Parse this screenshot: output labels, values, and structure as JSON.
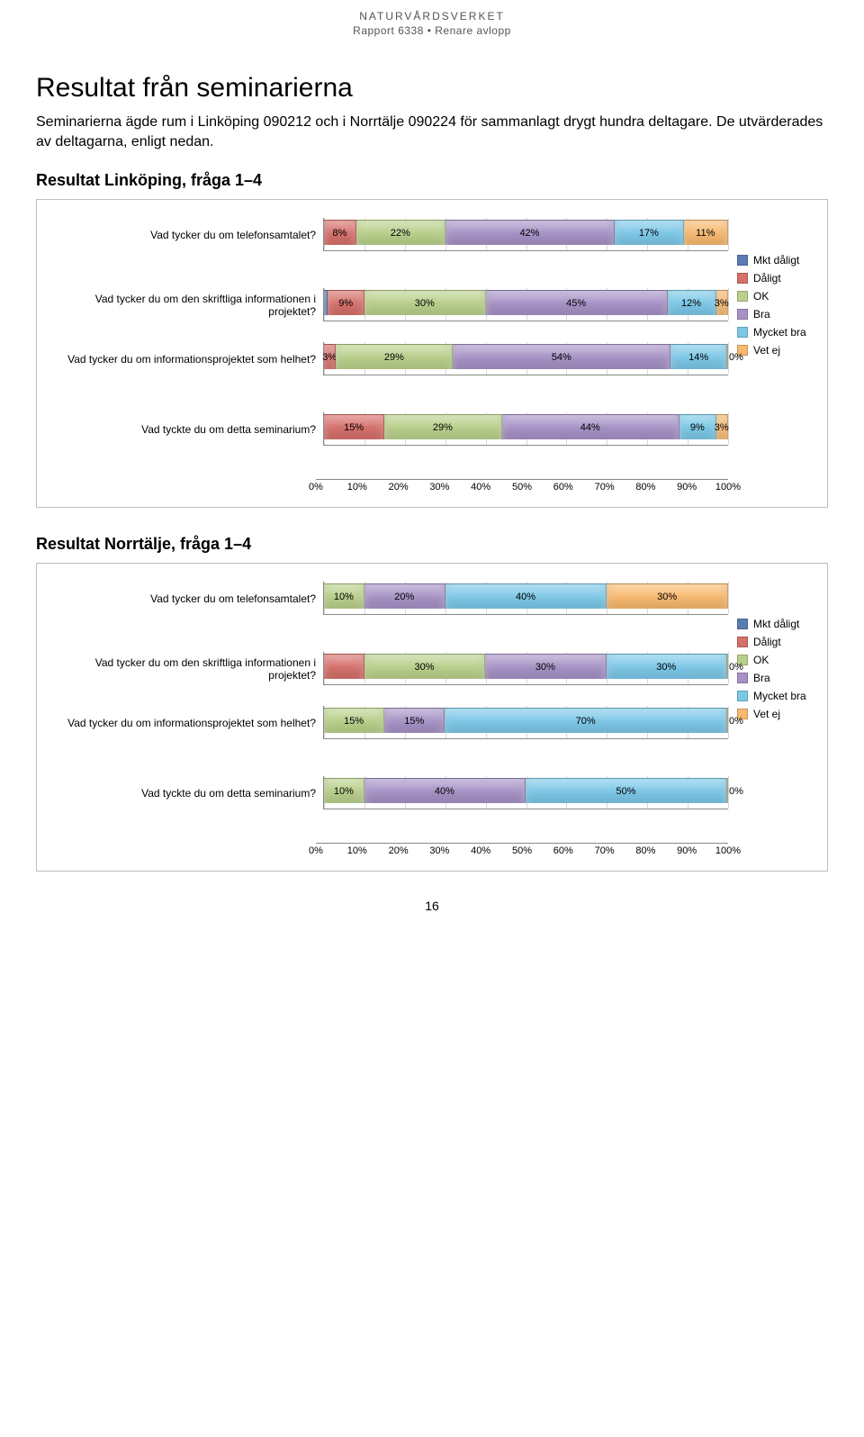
{
  "doc": {
    "header1": "NATURVÅRDSVERKET",
    "header2": "Rapport 6338 • Renare avlopp",
    "page_num": "16",
    "title": "Resultat från seminarierna",
    "intro": "Seminarierna ägde rum i Linköping 090212 och i Norrtälje 090224 för sammanlagt drygt hundra deltagare. De utvärderades av deltagarna, enligt nedan.",
    "subtitle1": "Resultat Linköping, fråga 1–4",
    "subtitle2": "Resultat Norrtälje, fråga 1–4"
  },
  "palette": {
    "mkt_daligt": "#5b7bb4",
    "daligt": "#d6706b",
    "ok": "#b9d08b",
    "bra": "#a692c6",
    "mycket_bra": "#7cc8e8",
    "vet_ej": "#f7b96f",
    "grid": "#d9d9d9"
  },
  "legend": {
    "items": [
      {
        "label": "Mkt dåligt",
        "colorKey": "mkt_daligt"
      },
      {
        "label": "Dåligt",
        "colorKey": "daligt"
      },
      {
        "label": "OK",
        "colorKey": "ok"
      },
      {
        "label": "Bra",
        "colorKey": "bra"
      },
      {
        "label": "Mycket bra",
        "colorKey": "mycket_bra"
      },
      {
        "label": "Vet ej",
        "colorKey": "vet_ej"
      }
    ]
  },
  "axis": {
    "ticks": [
      0,
      10,
      20,
      30,
      40,
      50,
      60,
      70,
      80,
      90,
      100
    ],
    "labels": [
      "0%",
      "10%",
      "20%",
      "30%",
      "40%",
      "50%",
      "60%",
      "70%",
      "80%",
      "90%",
      "100%"
    ]
  },
  "chart1": {
    "rows": [
      {
        "label": "Vad tycker du om telefonsamtalet?",
        "tight": false,
        "legendAnchor": false,
        "segments": [
          {
            "v": 8,
            "txt": "8%",
            "colorKey": "daligt"
          },
          {
            "v": 22,
            "txt": "22%",
            "colorKey": "ok"
          },
          {
            "v": 42,
            "txt": "42%",
            "colorKey": "bra"
          },
          {
            "v": 17,
            "txt": "17%",
            "colorKey": "mycket_bra"
          },
          {
            "v": 11,
            "txt": "11%",
            "colorKey": "vet_ej"
          }
        ]
      },
      {
        "label": "Vad tycker du om den skriftliga informationen i projektet?",
        "tight": true,
        "legendAnchor": true,
        "segments": [
          {
            "v": 1,
            "txt": "",
            "colorKey": "mkt_daligt"
          },
          {
            "v": 9,
            "txt": "9%",
            "colorKey": "daligt"
          },
          {
            "v": 30,
            "txt": "30%",
            "colorKey": "ok"
          },
          {
            "v": 45,
            "txt": "45%",
            "colorKey": "bra"
          },
          {
            "v": 12,
            "txt": "12%",
            "colorKey": "mycket_bra"
          },
          {
            "v": 3,
            "txt": "3%",
            "colorKey": "vet_ej"
          }
        ]
      },
      {
        "label": "Vad tycker du om informationsprojektet som helhet?",
        "tight": false,
        "legendAnchor": false,
        "segments": [
          {
            "v": 3,
            "txt": "3%",
            "colorKey": "daligt"
          },
          {
            "v": 29,
            "txt": "29%",
            "colorKey": "ok"
          },
          {
            "v": 54,
            "txt": "54%",
            "colorKey": "bra"
          },
          {
            "v": 14,
            "txt": "14%",
            "colorKey": "mycket_bra"
          },
          {
            "v": 0,
            "txt": "0%",
            "colorKey": "vet_ej",
            "outside": true
          }
        ]
      },
      {
        "label": "Vad tyckte du om detta seminarium?",
        "tight": false,
        "legendAnchor": false,
        "segments": [
          {
            "v": 15,
            "txt": "15%",
            "colorKey": "daligt"
          },
          {
            "v": 29,
            "txt": "29%",
            "colorKey": "ok"
          },
          {
            "v": 44,
            "txt": "44%",
            "colorKey": "bra"
          },
          {
            "v": 9,
            "txt": "9%",
            "colorKey": "mycket_bra"
          },
          {
            "v": 3,
            "txt": "3%",
            "colorKey": "vet_ej"
          }
        ]
      }
    ]
  },
  "chart2": {
    "rows": [
      {
        "label": "Vad tycker du om telefonsamtalet?",
        "tight": false,
        "legendAnchor": false,
        "segments": [
          {
            "v": 10,
            "txt": "10%",
            "colorKey": "ok"
          },
          {
            "v": 20,
            "txt": "20%",
            "colorKey": "bra"
          },
          {
            "v": 40,
            "txt": "40%",
            "colorKey": "mycket_bra"
          },
          {
            "v": 30,
            "txt": "30%",
            "colorKey": "vet_ej"
          }
        ]
      },
      {
        "label": "Vad tycker du om den skriftliga informationen i projektet?",
        "tight": true,
        "legendAnchor": true,
        "segments": [
          {
            "v": 10,
            "txt": "",
            "colorKey": "daligt"
          },
          {
            "v": 30,
            "txt": "30%",
            "colorKey": "ok"
          },
          {
            "v": 30,
            "txt": "30%",
            "colorKey": "bra"
          },
          {
            "v": 30,
            "txt": "30%",
            "colorKey": "mycket_bra"
          },
          {
            "v": 0,
            "txt": "0%",
            "colorKey": "vet_ej",
            "outside": true
          }
        ]
      },
      {
        "label": "Vad tycker du om informationsprojektet som helhet?",
        "tight": false,
        "legendAnchor": false,
        "segments": [
          {
            "v": 15,
            "txt": "15%",
            "colorKey": "ok"
          },
          {
            "v": 15,
            "txt": "15%",
            "colorKey": "bra"
          },
          {
            "v": 70,
            "txt": "70%",
            "colorKey": "mycket_bra"
          },
          {
            "v": 0,
            "txt": "0%",
            "colorKey": "vet_ej",
            "outside": true
          }
        ]
      },
      {
        "label": "Vad tyckte du om detta seminarium?",
        "tight": false,
        "legendAnchor": false,
        "segments": [
          {
            "v": 10,
            "txt": "10%",
            "colorKey": "ok"
          },
          {
            "v": 40,
            "txt": "40%",
            "colorKey": "bra"
          },
          {
            "v": 50,
            "txt": "50%",
            "colorKey": "mycket_bra"
          },
          {
            "v": 0,
            "txt": "0%",
            "colorKey": "vet_ej",
            "outside": true
          }
        ]
      }
    ]
  }
}
